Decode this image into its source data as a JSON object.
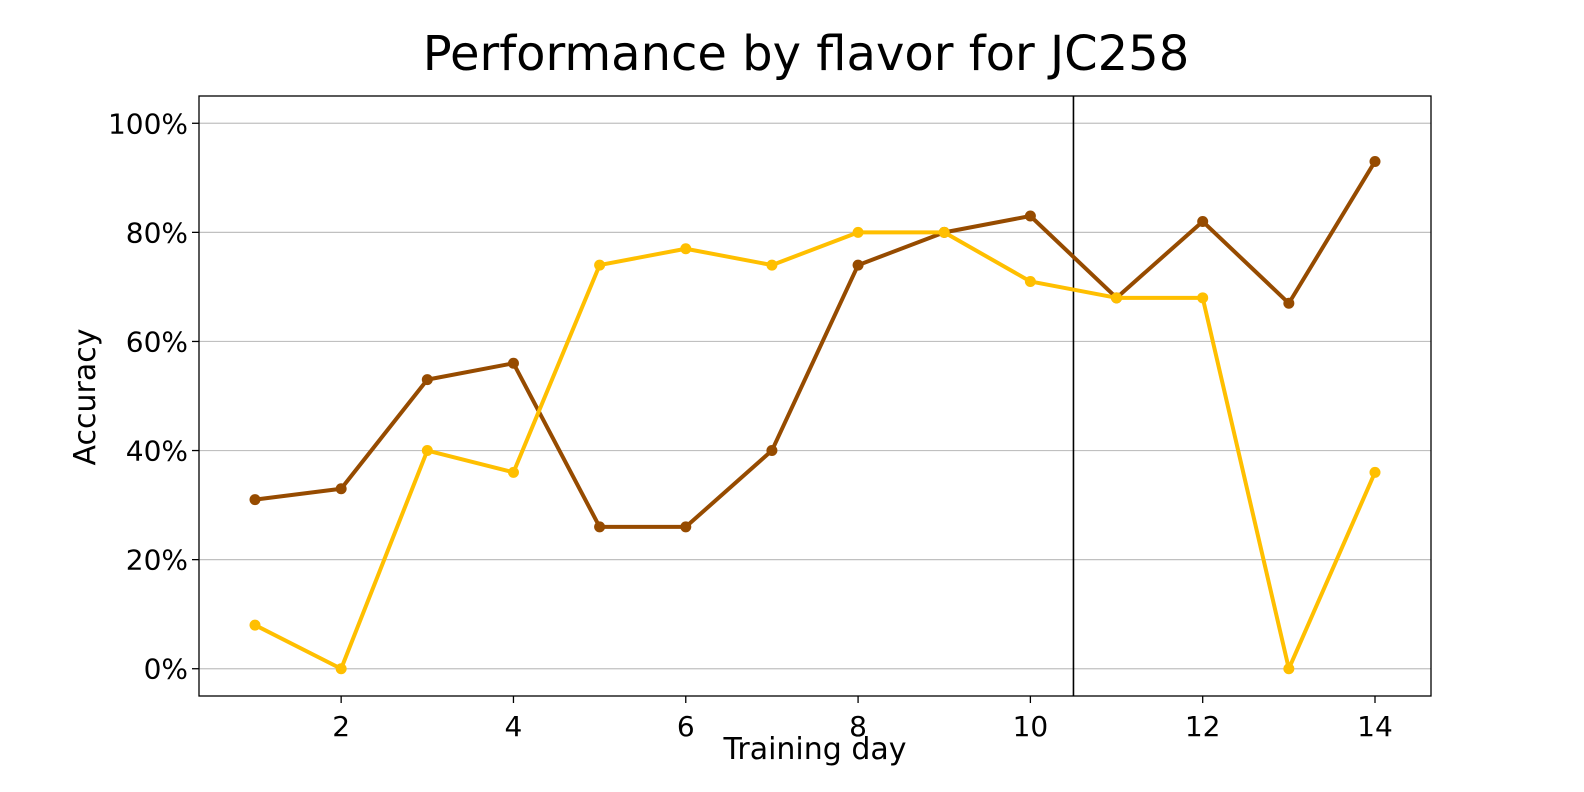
{
  "chart_data": {
    "type": "line",
    "title": "Performance by flavor for JC258",
    "xlabel": "Training day",
    "ylabel": "Accuracy",
    "xlim": [
      0.35,
      14.65
    ],
    "ylim": [
      -5,
      105
    ],
    "xticks": [
      2,
      4,
      6,
      8,
      10,
      12,
      14
    ],
    "xtick_labels": [
      "2",
      "4",
      "6",
      "8",
      "10",
      "12",
      "14"
    ],
    "yticks": [
      0,
      20,
      40,
      60,
      80,
      100
    ],
    "ytick_labels": [
      "0%",
      "20%",
      "40%",
      "60%",
      "80%",
      "100%"
    ],
    "grid": "horizontal",
    "legend": "none",
    "vertical_line_x": 10.5,
    "x": [
      1,
      2,
      3,
      4,
      5,
      6,
      7,
      8,
      9,
      10,
      11,
      12,
      13,
      14
    ],
    "series": [
      {
        "color": "#964B00",
        "values": [
          31,
          33,
          53,
          56,
          26,
          26,
          40,
          74,
          80,
          83,
          68,
          82,
          67,
          93
        ]
      },
      {
        "color": "#FFBF00",
        "values": [
          8,
          0,
          40,
          36,
          74,
          77,
          74,
          80,
          80,
          71,
          68,
          68,
          0,
          36
        ]
      }
    ]
  }
}
